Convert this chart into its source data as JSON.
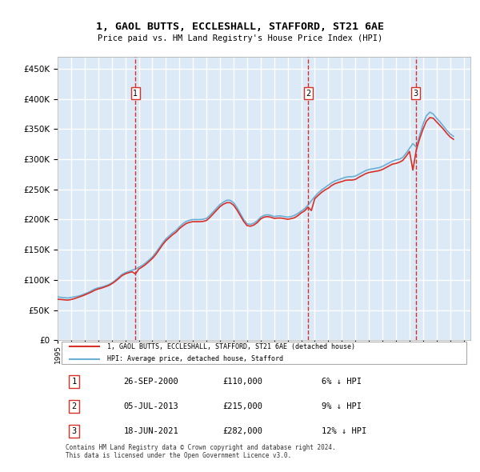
{
  "title": "1, GAOL BUTTS, ECCLESHALL, STAFFORD, ST21 6AE",
  "subtitle": "Price paid vs. HM Land Registry's House Price Index (HPI)",
  "ylabel_ticks": [
    "£0",
    "£50K",
    "£100K",
    "£150K",
    "£200K",
    "£250K",
    "£300K",
    "£350K",
    "£400K",
    "£450K"
  ],
  "ytick_values": [
    0,
    50000,
    100000,
    150000,
    200000,
    250000,
    300000,
    350000,
    400000,
    450000
  ],
  "ylim": [
    0,
    470000
  ],
  "xlim_start": 1995.0,
  "xlim_end": 2025.5,
  "background_color": "#dce9f7",
  "plot_bg": "#dce9f7",
  "grid_color": "#ffffff",
  "hpi_color": "#6baed6",
  "price_color": "#d73027",
  "marker_color": "#d73027",
  "transaction_dates": [
    2000.74,
    2013.51,
    2021.46
  ],
  "transaction_prices": [
    110000,
    215000,
    282000
  ],
  "transaction_labels": [
    "1",
    "2",
    "3"
  ],
  "legend_property": "1, GAOL BUTTS, ECCLESHALL, STAFFORD, ST21 6AE (detached house)",
  "legend_hpi": "HPI: Average price, detached house, Stafford",
  "table_rows": [
    [
      "1",
      "26-SEP-2000",
      "£110,000",
      "6% ↓ HPI"
    ],
    [
      "2",
      "05-JUL-2013",
      "£215,000",
      "9% ↓ HPI"
    ],
    [
      "3",
      "18-JUN-2021",
      "£282,000",
      "12% ↓ HPI"
    ]
  ],
  "footer": "Contains HM Land Registry data © Crown copyright and database right 2024.\nThis data is licensed under the Open Government Licence v3.0.",
  "hpi_data": {
    "years": [
      1995.0,
      1995.25,
      1995.5,
      1995.75,
      1996.0,
      1996.25,
      1996.5,
      1996.75,
      1997.0,
      1997.25,
      1997.5,
      1997.75,
      1998.0,
      1998.25,
      1998.5,
      1998.75,
      1999.0,
      1999.25,
      1999.5,
      1999.75,
      2000.0,
      2000.25,
      2000.5,
      2000.75,
      2001.0,
      2001.25,
      2001.5,
      2001.75,
      2002.0,
      2002.25,
      2002.5,
      2002.75,
      2003.0,
      2003.25,
      2003.5,
      2003.75,
      2004.0,
      2004.25,
      2004.5,
      2004.75,
      2005.0,
      2005.25,
      2005.5,
      2005.75,
      2006.0,
      2006.25,
      2006.5,
      2006.75,
      2007.0,
      2007.25,
      2007.5,
      2007.75,
      2008.0,
      2008.25,
      2008.5,
      2008.75,
      2009.0,
      2009.25,
      2009.5,
      2009.75,
      2010.0,
      2010.25,
      2010.5,
      2010.75,
      2011.0,
      2011.25,
      2011.5,
      2011.75,
      2012.0,
      2012.25,
      2012.5,
      2012.75,
      2013.0,
      2013.25,
      2013.5,
      2013.75,
      2014.0,
      2014.25,
      2014.5,
      2014.75,
      2015.0,
      2015.25,
      2015.5,
      2015.75,
      2016.0,
      2016.25,
      2016.5,
      2016.75,
      2017.0,
      2017.25,
      2017.5,
      2017.75,
      2018.0,
      2018.25,
      2018.5,
      2018.75,
      2019.0,
      2019.25,
      2019.5,
      2019.75,
      2020.0,
      2020.25,
      2020.5,
      2020.75,
      2021.0,
      2021.25,
      2021.5,
      2021.75,
      2022.0,
      2022.25,
      2022.5,
      2022.75,
      2023.0,
      2023.25,
      2023.5,
      2023.75,
      2024.0,
      2024.25
    ],
    "values": [
      72000,
      71000,
      70500,
      70000,
      71000,
      72000,
      73000,
      74500,
      77000,
      79000,
      82000,
      85000,
      87000,
      88000,
      90000,
      92000,
      95000,
      99000,
      104000,
      109000,
      112000,
      114000,
      116000,
      118000,
      121000,
      124000,
      128000,
      133000,
      138000,
      145000,
      153000,
      161000,
      168000,
      173000,
      178000,
      182000,
      188000,
      193000,
      197000,
      199000,
      200000,
      200000,
      200000,
      200500,
      202000,
      207000,
      213000,
      219000,
      225000,
      229000,
      232000,
      232000,
      228000,
      220000,
      210000,
      200000,
      193000,
      192000,
      194000,
      198000,
      204000,
      207000,
      208000,
      207000,
      205000,
      206000,
      206000,
      205000,
      204000,
      205000,
      207000,
      210000,
      214000,
      218000,
      224000,
      231000,
      238000,
      244000,
      249000,
      253000,
      257000,
      261000,
      264000,
      266000,
      268000,
      270000,
      271000,
      271000,
      272000,
      275000,
      278000,
      281000,
      283000,
      284000,
      285000,
      286000,
      288000,
      291000,
      294000,
      297000,
      299000,
      300000,
      303000,
      310000,
      318000,
      326000,
      320000,
      340000,
      358000,
      372000,
      378000,
      375000,
      368000,
      362000,
      355000,
      348000,
      342000,
      338000
    ]
  },
  "price_data": {
    "years": [
      1995.0,
      1995.25,
      1995.5,
      1995.75,
      1996.0,
      1996.25,
      1996.5,
      1996.75,
      1997.0,
      1997.25,
      1997.5,
      1997.75,
      1998.0,
      1998.25,
      1998.5,
      1998.75,
      1999.0,
      1999.25,
      1999.5,
      1999.75,
      2000.0,
      2000.25,
      2000.5,
      2000.75,
      2001.0,
      2001.25,
      2001.5,
      2001.75,
      2002.0,
      2002.25,
      2002.5,
      2002.75,
      2003.0,
      2003.25,
      2003.5,
      2003.75,
      2004.0,
      2004.25,
      2004.5,
      2004.75,
      2005.0,
      2005.25,
      2005.5,
      2005.75,
      2006.0,
      2006.25,
      2006.5,
      2006.75,
      2007.0,
      2007.25,
      2007.5,
      2007.75,
      2008.0,
      2008.25,
      2008.5,
      2008.75,
      2009.0,
      2009.25,
      2009.5,
      2009.75,
      2010.0,
      2010.25,
      2010.5,
      2010.75,
      2011.0,
      2011.25,
      2011.5,
      2011.75,
      2012.0,
      2012.25,
      2012.5,
      2012.75,
      2013.0,
      2013.25,
      2013.5,
      2013.75,
      2014.0,
      2014.25,
      2014.5,
      2014.75,
      2015.0,
      2015.25,
      2015.5,
      2015.75,
      2016.0,
      2016.25,
      2016.5,
      2016.75,
      2017.0,
      2017.25,
      2017.5,
      2017.75,
      2018.0,
      2018.25,
      2018.5,
      2018.75,
      2019.0,
      2019.25,
      2019.5,
      2019.75,
      2020.0,
      2020.25,
      2020.5,
      2020.75,
      2021.0,
      2021.25,
      2021.5,
      2021.75,
      2022.0,
      2022.25,
      2022.5,
      2022.75,
      2023.0,
      2023.25,
      2023.5,
      2023.75,
      2024.0,
      2024.25
    ],
    "values": [
      68000,
      67500,
      67000,
      66500,
      67500,
      69000,
      71000,
      73000,
      75000,
      77500,
      80000,
      83000,
      85000,
      86500,
      88500,
      90500,
      93500,
      97500,
      102000,
      107000,
      110000,
      112000,
      113500,
      110000,
      118000,
      121500,
      125500,
      130500,
      135500,
      142000,
      150000,
      158000,
      165000,
      170000,
      175000,
      179000,
      185000,
      189500,
      193500,
      195500,
      196500,
      196500,
      196500,
      197000,
      198500,
      203500,
      209500,
      215500,
      221500,
      225500,
      228000,
      228000,
      224000,
      216000,
      206500,
      197000,
      190000,
      189000,
      191000,
      195000,
      201000,
      204000,
      205000,
      204000,
      202000,
      202500,
      202500,
      201500,
      200500,
      201500,
      203000,
      206500,
      211000,
      214500,
      220500,
      215000,
      234500,
      240000,
      245000,
      249000,
      252000,
      256500,
      259500,
      261500,
      263000,
      265000,
      265500,
      265500,
      266500,
      270000,
      273000,
      276000,
      278000,
      279000,
      280000,
      281000,
      283000,
      286000,
      289000,
      292000,
      293000,
      295000,
      298000,
      305000,
      313000,
      282000,
      315000,
      334000,
      350000,
      363000,
      369000,
      368000,
      362000,
      356000,
      350000,
      343000,
      337000,
      333000
    ]
  }
}
